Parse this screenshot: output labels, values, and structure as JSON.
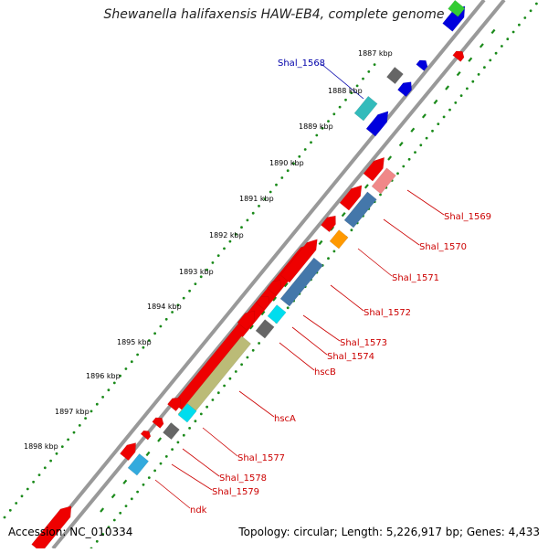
{
  "title": "Shewanella halifaxensis HAW-EB4, complete genome",
  "footer": {
    "accession": "Accession: NC_010334",
    "topology": "Topology: circular; Length: 5,226,917 bp; Genes: 4,433"
  },
  "colors": {
    "red": "#ee0000",
    "blue": "#0000dd",
    "gray": "#666666",
    "cyan": "#00ddee",
    "teal": "#33bbbb",
    "salmon": "#f08888",
    "steelblue": "#4477aa",
    "orange": "#ff9900",
    "olive": "#bbbb77",
    "lightblue": "#33aadd",
    "green": "#33cc33",
    "ruler": "#999999",
    "dots": "#1a8a1a",
    "label_red": "#cc0000",
    "label_blue": "#0000aa"
  },
  "kbp_labels": [
    "1887 kbp",
    "1888 kbp",
    "1889 kbp",
    "1890 kbp",
    "1891 kbp",
    "1892 kbp",
    "1893 kbp",
    "1894 kbp",
    "1895 kbp",
    "1896 kbp",
    "1897 kbp",
    "1898 kbp"
  ],
  "gene_labels": [
    "Shal_1568",
    "Shal_1569",
    "Shal_1570",
    "Shal_1571",
    "Shal_1572",
    "Shal_1573",
    "Shal_1574",
    "hscB",
    "hscA",
    "Shal_1577",
    "Shal_1578",
    "Shal_1579",
    "ndk"
  ]
}
